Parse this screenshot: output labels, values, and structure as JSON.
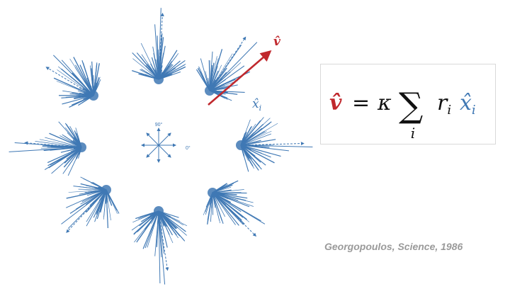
{
  "colors": {
    "neuron_blue": "#3f78b4",
    "population_red": "#c0282d",
    "citation_gray": "#9a9a9a"
  },
  "diagram": {
    "population_vector_label": "v̂",
    "unit_vector_label_base": "x̂",
    "unit_vector_label_sub": "i",
    "axis_label_90": "90°",
    "axis_label_0": "0°",
    "cluster_count": 8,
    "highlighted_cluster": "up-right"
  },
  "equation": {
    "lhs": "v̂",
    "equals": "=",
    "kappa": "κ",
    "sum": "∑",
    "sum_index": "i",
    "r": "r",
    "r_sub": "i",
    "x_hat": "x̂",
    "x_sub": "i"
  },
  "citation": "Georgopoulos, Science, 1986"
}
